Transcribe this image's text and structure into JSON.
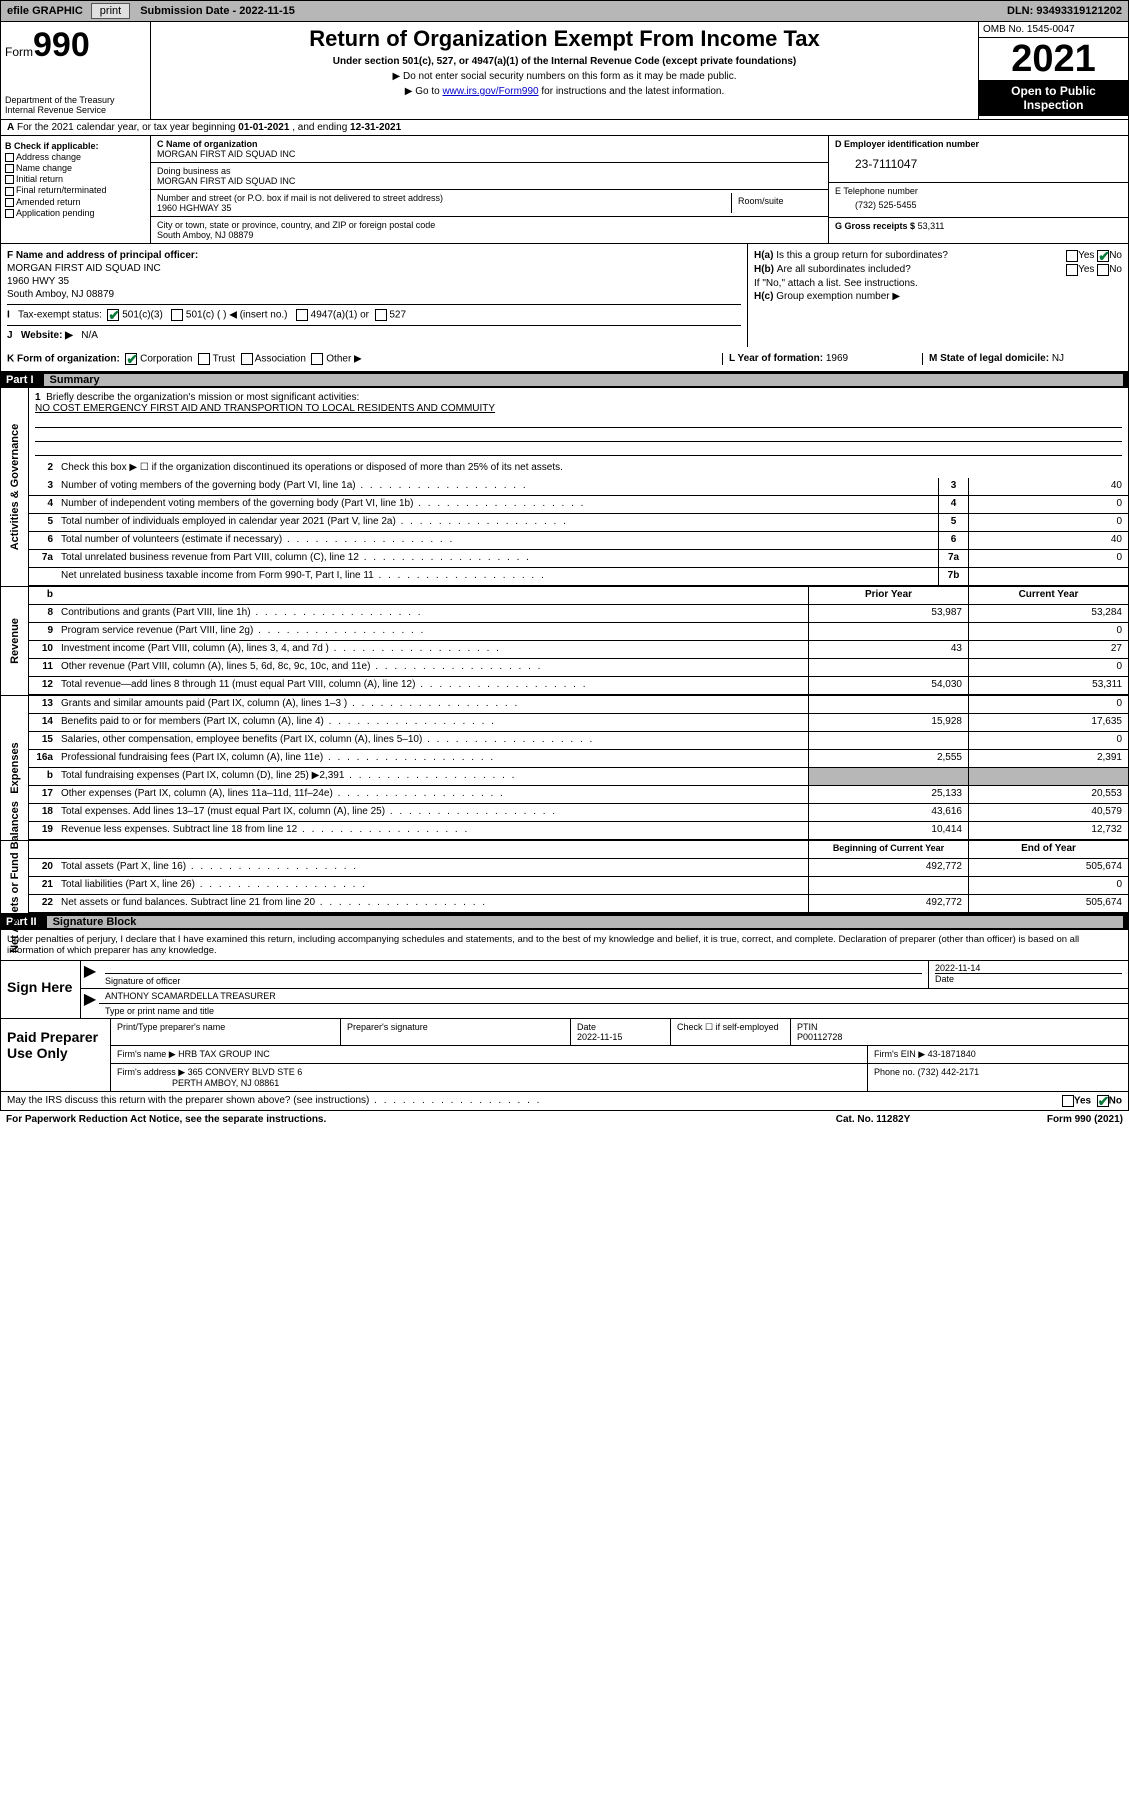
{
  "topbar": {
    "efile": "efile GRAPHIC",
    "print": "print",
    "sub_label": "Submission Date - 2022-11-15",
    "dln": "DLN: 93493319121202"
  },
  "header": {
    "form_word": "Form",
    "form_num": "990",
    "title": "Return of Organization Exempt From Income Tax",
    "sub1": "Under section 501(c), 527, or 4947(a)(1) of the Internal Revenue Code (except private foundations)",
    "sub2": "▶ Do not enter social security numbers on this form as it may be made public.",
    "sub3_pre": "▶ Go to ",
    "sub3_link": "www.irs.gov/Form990",
    "sub3_post": " for instructions and the latest information.",
    "dept": "Department of the Treasury",
    "irs": "Internal Revenue Service",
    "omb": "OMB No. 1545-0047",
    "year": "2021",
    "inspect1": "Open to Public",
    "inspect2": "Inspection"
  },
  "row_a": {
    "text_pre": "For the 2021 calendar year, or tax year beginning ",
    "begin": "01-01-2021",
    "mid": " , and ending ",
    "end": "12-31-2021"
  },
  "col_b": {
    "hdr": "B Check if applicable:",
    "items": [
      "Address change",
      "Name change",
      "Initial return",
      "Final return/terminated",
      "Amended return",
      "Application pending"
    ]
  },
  "col_c": {
    "c_lbl": "C Name of organization",
    "c_val": "MORGAN FIRST AID SQUAD INC",
    "dba_lbl": "Doing business as",
    "dba_val": "MORGAN FIRST AID SQUAD INC",
    "addr_lbl": "Number and street (or P.O. box if mail is not delivered to street address)",
    "room_lbl": "Room/suite",
    "addr_val": "1960 HGHWAY 35",
    "city_lbl": "City or town, state or province, country, and ZIP or foreign postal code",
    "city_val": "South Amboy, NJ  08879",
    "f_lbl": "F Name and address of principal officer:",
    "f_name": "MORGAN FIRST AID SQUAD INC",
    "f_addr1": "1960 HWY 35",
    "f_addr2": "South Amboy, NJ  08879"
  },
  "col_d": {
    "d_lbl": "D Employer identification number",
    "d_val": "23-7111047",
    "e_lbl": "E Telephone number",
    "e_val": "(732) 525-5455",
    "g_lbl": "G Gross receipts $",
    "g_val": "53,311"
  },
  "h": {
    "a_q": "Is this a group return for subordinates?",
    "b_q": "Are all subordinates included?",
    "b_note": "If \"No,\" attach a list. See instructions.",
    "c_q": "Group exemption number ▶",
    "yes": "Yes",
    "no": "No",
    "ha": "H(a)",
    "hb": "H(b)",
    "hc": "H(c)"
  },
  "i": {
    "lbl": "Tax-exempt status:",
    "opt1": "501(c)(3)",
    "opt2": "501(c) (   ) ◀ (insert no.)",
    "opt3": "4947(a)(1) or",
    "opt4": "527"
  },
  "j": {
    "lbl": "Website: ▶",
    "val": "N/A"
  },
  "k": {
    "lbl": "K Form of organization:",
    "opts": [
      "Corporation",
      "Trust",
      "Association",
      "Other ▶"
    ],
    "l_lbl": "L Year of formation:",
    "l_val": "1969",
    "m_lbl": "M State of legal domicile:",
    "m_val": "NJ"
  },
  "part1": {
    "num": "Part I",
    "title": "Summary",
    "l1_lbl": "Briefly describe the organization's mission or most significant activities:",
    "l1_val": "NO COST EMERGENCY FIRST AID AND TRANSPORTION TO LOCAL RESIDENTS AND COMMUITY",
    "l2": "Check this box ▶ ☐  if the organization discontinued its operations or disposed of more than 25% of its net assets.",
    "lines_gov": [
      {
        "n": "3",
        "t": "Number of voting members of the governing body (Part VI, line 1a)",
        "b": "3",
        "v": "40"
      },
      {
        "n": "4",
        "t": "Number of independent voting members of the governing body (Part VI, line 1b)",
        "b": "4",
        "v": "0"
      },
      {
        "n": "5",
        "t": "Total number of individuals employed in calendar year 2021 (Part V, line 2a)",
        "b": "5",
        "v": "0"
      },
      {
        "n": "6",
        "t": "Total number of volunteers (estimate if necessary)",
        "b": "6",
        "v": "40"
      },
      {
        "n": "7a",
        "t": "Total unrelated business revenue from Part VIII, column (C), line 12",
        "b": "7a",
        "v": "0"
      },
      {
        "n": "",
        "t": "Net unrelated business taxable income from Form 990-T, Part I, line 11",
        "b": "7b",
        "v": ""
      }
    ],
    "col_py": "Prior Year",
    "col_cy": "Current Year",
    "lines_rev": [
      {
        "n": "8",
        "t": "Contributions and grants (Part VIII, line 1h)",
        "py": "53,987",
        "cy": "53,284"
      },
      {
        "n": "9",
        "t": "Program service revenue (Part VIII, line 2g)",
        "py": "",
        "cy": "0"
      },
      {
        "n": "10",
        "t": "Investment income (Part VIII, column (A), lines 3, 4, and 7d )",
        "py": "43",
        "cy": "27"
      },
      {
        "n": "11",
        "t": "Other revenue (Part VIII, column (A), lines 5, 6d, 8c, 9c, 10c, and 11e)",
        "py": "",
        "cy": "0"
      },
      {
        "n": "12",
        "t": "Total revenue—add lines 8 through 11 (must equal Part VIII, column (A), line 12)",
        "py": "54,030",
        "cy": "53,311"
      }
    ],
    "lines_exp": [
      {
        "n": "13",
        "t": "Grants and similar amounts paid (Part IX, column (A), lines 1–3 )",
        "py": "",
        "cy": "0"
      },
      {
        "n": "14",
        "t": "Benefits paid to or for members (Part IX, column (A), line 4)",
        "py": "15,928",
        "cy": "17,635"
      },
      {
        "n": "15",
        "t": "Salaries, other compensation, employee benefits (Part IX, column (A), lines 5–10)",
        "py": "",
        "cy": "0"
      },
      {
        "n": "16a",
        "t": "Professional fundraising fees (Part IX, column (A), line 11e)",
        "py": "2,555",
        "cy": "2,391"
      },
      {
        "n": "b",
        "t": "Total fundraising expenses (Part IX, column (D), line 25) ▶2,391",
        "py": "G",
        "cy": "G"
      },
      {
        "n": "17",
        "t": "Other expenses (Part IX, column (A), lines 11a–11d, 11f–24e)",
        "py": "25,133",
        "cy": "20,553"
      },
      {
        "n": "18",
        "t": "Total expenses. Add lines 13–17 (must equal Part IX, column (A), line 25)",
        "py": "43,616",
        "cy": "40,579"
      },
      {
        "n": "19",
        "t": "Revenue less expenses. Subtract line 18 from line 12",
        "py": "10,414",
        "cy": "12,732"
      }
    ],
    "col_boy": "Beginning of Current Year",
    "col_eoy": "End of Year",
    "lines_net": [
      {
        "n": "20",
        "t": "Total assets (Part X, line 16)",
        "py": "492,772",
        "cy": "505,674"
      },
      {
        "n": "21",
        "t": "Total liabilities (Part X, line 26)",
        "py": "",
        "cy": "0"
      },
      {
        "n": "22",
        "t": "Net assets or fund balances. Subtract line 21 from line 20",
        "py": "492,772",
        "cy": "505,674"
      }
    ],
    "vtabs": {
      "gov": "Activities & Governance",
      "rev": "Revenue",
      "exp": "Expenses",
      "net": "Net Assets or Fund Balances"
    }
  },
  "part2": {
    "num": "Part II",
    "title": "Signature Block",
    "intro": "Under penalties of perjury, I declare that I have examined this return, including accompanying schedules and statements, and to the best of my knowledge and belief, it is true, correct, and complete. Declaration of preparer (other than officer) is based on all information of which preparer has any knowledge.",
    "sign_here": "Sign Here",
    "sig_officer": "Signature of officer",
    "sig_date": "Date",
    "sig_date_val": "2022-11-14",
    "name_title": "ANTHONY SCAMARDELLA  TREASURER",
    "name_lbl": "Type or print name and title",
    "paid": "Paid Preparer Use Only",
    "p_name_lbl": "Print/Type preparer's name",
    "p_sig_lbl": "Preparer's signature",
    "p_date_lbl": "Date",
    "p_date_val": "2022-11-15",
    "p_check_lbl": "Check ☐ if self-employed",
    "p_ptin_lbl": "PTIN",
    "p_ptin_val": "P00112728",
    "firm_name_lbl": "Firm's name    ▶",
    "firm_name_val": "HRB TAX GROUP INC",
    "firm_ein_lbl": "Firm's EIN ▶",
    "firm_ein_val": "43-1871840",
    "firm_addr_lbl": "Firm's address ▶",
    "firm_addr_val1": "365 CONVERY BLVD STE 6",
    "firm_addr_val2": "PERTH AMBOY, NJ  08861",
    "phone_lbl": "Phone no.",
    "phone_val": "(732) 442-2171",
    "may_q": "May the IRS discuss this return with the preparer shown above? (see instructions)",
    "paperwork": "For Paperwork Reduction Act Notice, see the separate instructions.",
    "cat": "Cat. No. 11282Y",
    "form_foot": "Form 990 (2021)"
  }
}
